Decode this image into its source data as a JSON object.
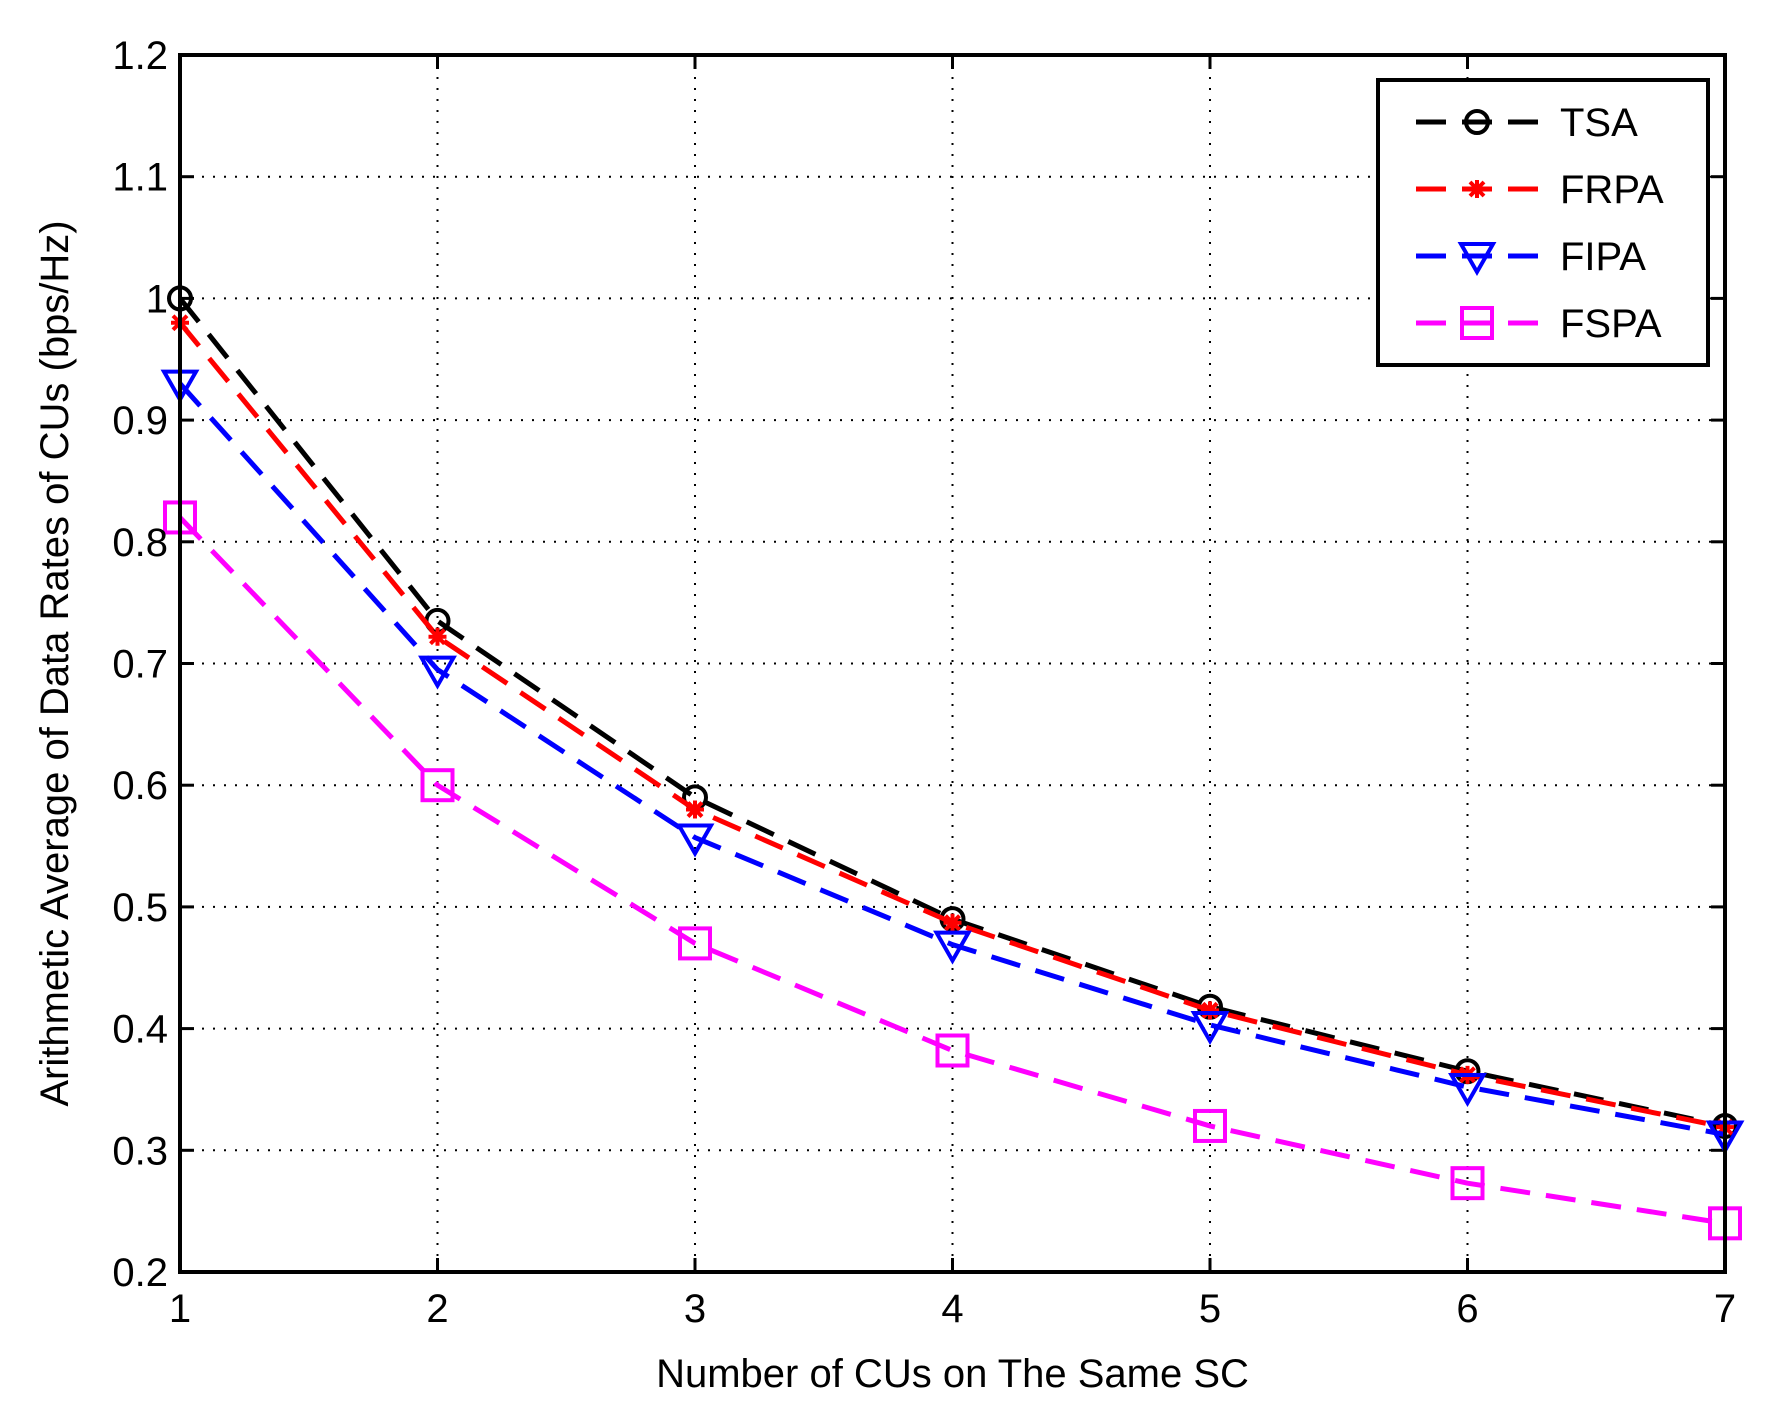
{
  "chart_data": {
    "type": "line",
    "title": "",
    "xlabel": "Number of CUs on The Same SC",
    "ylabel": "Arithmetic Average of Data Rates of CUs (bps/Hz)",
    "x": [
      1,
      2,
      3,
      4,
      5,
      6,
      7
    ],
    "xlim": [
      1,
      7
    ],
    "ylim": [
      0.2,
      1.2
    ],
    "xticks": [
      "1",
      "2",
      "3",
      "4",
      "5",
      "6",
      "7"
    ],
    "yticks": [
      "0.2",
      "0.3",
      "0.4",
      "0.5",
      "0.6",
      "0.7",
      "0.8",
      "0.9",
      "1",
      "1.1",
      "1.2"
    ],
    "grid": true,
    "legend_position": "top-right",
    "series": [
      {
        "name": "TSA",
        "color": "#000000",
        "marker": "circle",
        "values": [
          1.0,
          0.735,
          0.59,
          0.49,
          0.418,
          0.365,
          0.32
        ]
      },
      {
        "name": "FRPA",
        "color": "#ff0000",
        "marker": "asterisk",
        "values": [
          0.98,
          0.722,
          0.58,
          0.487,
          0.415,
          0.362,
          0.319
        ]
      },
      {
        "name": "FIPA",
        "color": "#0000ff",
        "marker": "triangle-down",
        "values": [
          0.93,
          0.695,
          0.557,
          0.469,
          0.403,
          0.352,
          0.313
        ]
      },
      {
        "name": "FSPA",
        "color": "#ff00ff",
        "marker": "square",
        "values": [
          0.82,
          0.6,
          0.47,
          0.382,
          0.32,
          0.273,
          0.24
        ]
      }
    ]
  }
}
